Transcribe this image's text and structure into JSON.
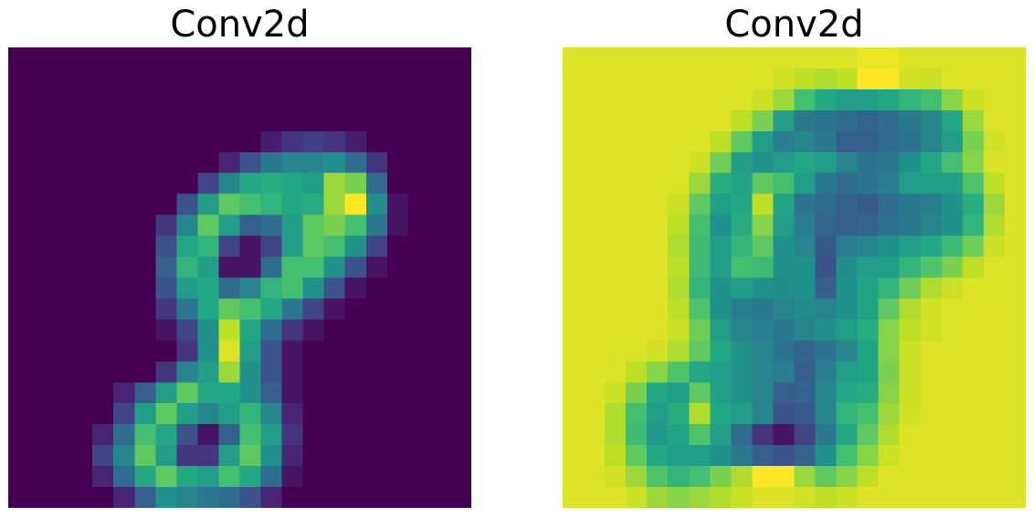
{
  "chart_data": [
    {
      "type": "heatmap",
      "title": "Conv2d",
      "colormap": "viridis",
      "axes_visible": false,
      "grid": false,
      "rows": 22,
      "cols": 22,
      "values": [
        [
          0,
          0,
          0,
          0,
          0,
          0,
          0,
          0,
          0,
          0,
          0,
          0,
          0,
          0,
          0,
          0,
          0,
          0,
          0,
          0,
          0,
          0
        ],
        [
          0,
          0,
          0,
          0,
          0,
          0,
          0,
          0,
          0,
          0,
          0,
          0,
          0,
          0,
          0,
          0,
          0,
          0,
          0,
          0,
          0,
          0
        ],
        [
          0,
          0,
          0,
          0,
          0,
          0,
          0,
          0,
          0,
          0,
          0,
          0,
          0,
          0,
          0,
          0,
          0,
          0,
          0,
          0,
          0,
          0
        ],
        [
          0,
          0,
          0,
          0,
          0,
          0,
          0,
          0,
          0,
          0,
          0,
          0,
          0,
          0,
          0,
          0,
          0,
          0,
          0,
          0,
          0,
          0
        ],
        [
          0,
          0,
          0,
          0,
          0,
          0,
          0,
          0,
          0,
          0,
          0,
          0,
          0.08,
          0.15,
          0.18,
          0.15,
          0.08,
          0,
          0,
          0,
          0,
          0
        ],
        [
          0,
          0,
          0,
          0,
          0,
          0,
          0,
          0,
          0,
          0,
          0.1,
          0.25,
          0.4,
          0.45,
          0.45,
          0.5,
          0.35,
          0.15,
          0,
          0,
          0,
          0
        ],
        [
          0,
          0,
          0,
          0,
          0,
          0,
          0,
          0,
          0,
          0.2,
          0.45,
          0.6,
          0.62,
          0.6,
          0.55,
          0.85,
          0.8,
          0.35,
          0,
          0,
          0,
          0
        ],
        [
          0,
          0,
          0,
          0,
          0,
          0,
          0,
          0,
          0.25,
          0.55,
          0.75,
          0.7,
          0.65,
          0.6,
          0.62,
          0.85,
          1.0,
          0.5,
          0.05,
          0,
          0,
          0
        ],
        [
          0,
          0,
          0,
          0,
          0,
          0,
          0,
          0.15,
          0.45,
          0.75,
          0.55,
          0.3,
          0.35,
          0.55,
          0.75,
          0.8,
          0.7,
          0.4,
          0.05,
          0,
          0,
          0
        ],
        [
          0,
          0,
          0,
          0,
          0,
          0,
          0,
          0.25,
          0.6,
          0.65,
          0.2,
          0.05,
          0.2,
          0.55,
          0.75,
          0.7,
          0.5,
          0.2,
          0,
          0,
          0,
          0
        ],
        [
          0,
          0,
          0,
          0,
          0,
          0,
          0,
          0.3,
          0.65,
          0.55,
          0.05,
          0.05,
          0.35,
          0.7,
          0.7,
          0.5,
          0.25,
          0.05,
          0,
          0,
          0,
          0
        ],
        [
          0,
          0,
          0,
          0,
          0,
          0,
          0,
          0.25,
          0.55,
          0.6,
          0.35,
          0.45,
          0.65,
          0.7,
          0.5,
          0.25,
          0.05,
          0,
          0,
          0,
          0,
          0
        ],
        [
          0,
          0,
          0,
          0,
          0,
          0,
          0,
          0.15,
          0.4,
          0.6,
          0.75,
          0.7,
          0.6,
          0.4,
          0.2,
          0.05,
          0,
          0,
          0,
          0,
          0,
          0
        ],
        [
          0,
          0,
          0,
          0,
          0,
          0,
          0,
          0.05,
          0.2,
          0.5,
          0.9,
          0.6,
          0.35,
          0.15,
          0.05,
          0,
          0,
          0,
          0,
          0,
          0,
          0
        ],
        [
          0,
          0,
          0,
          0,
          0,
          0,
          0,
          0,
          0.15,
          0.5,
          0.95,
          0.55,
          0.25,
          0.05,
          0,
          0,
          0,
          0,
          0,
          0,
          0,
          0
        ],
        [
          0,
          0,
          0,
          0,
          0,
          0,
          0,
          0.15,
          0.45,
          0.55,
          0.85,
          0.5,
          0.25,
          0.05,
          0,
          0,
          0,
          0,
          0,
          0,
          0,
          0
        ],
        [
          0,
          0,
          0,
          0,
          0,
          0.1,
          0.3,
          0.55,
          0.75,
          0.6,
          0.6,
          0.5,
          0.3,
          0.05,
          0,
          0,
          0,
          0,
          0,
          0,
          0,
          0
        ],
        [
          0,
          0,
          0,
          0,
          0,
          0.2,
          0.55,
          0.75,
          0.55,
          0.45,
          0.55,
          0.65,
          0.45,
          0.1,
          0,
          0,
          0,
          0,
          0,
          0,
          0,
          0
        ],
        [
          0,
          0,
          0,
          0,
          0.1,
          0.35,
          0.7,
          0.6,
          0.25,
          0.05,
          0.3,
          0.7,
          0.55,
          0.15,
          0,
          0,
          0,
          0,
          0,
          0,
          0,
          0
        ],
        [
          0,
          0,
          0,
          0,
          0.2,
          0.45,
          0.75,
          0.55,
          0.15,
          0.15,
          0.55,
          0.75,
          0.5,
          0.1,
          0,
          0,
          0,
          0,
          0,
          0,
          0,
          0
        ],
        [
          0,
          0,
          0,
          0,
          0.1,
          0.35,
          0.6,
          0.75,
          0.6,
          0.55,
          0.7,
          0.6,
          0.35,
          0.05,
          0,
          0,
          0,
          0,
          0,
          0,
          0,
          0
        ],
        [
          0,
          0,
          0,
          0,
          0,
          0.1,
          0.3,
          0.5,
          0.45,
          0.4,
          0.35,
          0.25,
          0.1,
          0,
          0,
          0,
          0,
          0,
          0,
          0,
          0,
          0
        ]
      ]
    },
    {
      "type": "heatmap",
      "title": "Conv2d",
      "colormap": "viridis",
      "axes_visible": false,
      "grid": false,
      "rows": 22,
      "cols": 22,
      "values": [
        [
          0.95,
          0.95,
          0.95,
          0.95,
          0.95,
          0.95,
          0.95,
          0.95,
          0.95,
          0.95,
          0.95,
          0.95,
          0.95,
          0.95,
          0.97,
          0.97,
          0.95,
          0.95,
          0.95,
          0.95,
          0.95,
          0.95
        ],
        [
          0.95,
          0.95,
          0.95,
          0.95,
          0.95,
          0.95,
          0.95,
          0.95,
          0.95,
          0.95,
          0.93,
          0.9,
          0.88,
          0.9,
          1.0,
          1.0,
          0.93,
          0.92,
          0.95,
          0.95,
          0.95,
          0.95
        ],
        [
          0.95,
          0.95,
          0.95,
          0.95,
          0.95,
          0.95,
          0.95,
          0.95,
          0.95,
          0.92,
          0.85,
          0.7,
          0.6,
          0.55,
          0.55,
          0.6,
          0.65,
          0.7,
          0.82,
          0.92,
          0.95,
          0.95
        ],
        [
          0.95,
          0.95,
          0.95,
          0.95,
          0.95,
          0.95,
          0.95,
          0.95,
          0.9,
          0.8,
          0.55,
          0.4,
          0.38,
          0.35,
          0.32,
          0.35,
          0.4,
          0.45,
          0.6,
          0.85,
          0.95,
          0.95
        ],
        [
          0.95,
          0.95,
          0.95,
          0.95,
          0.95,
          0.95,
          0.95,
          0.9,
          0.75,
          0.55,
          0.42,
          0.45,
          0.4,
          0.3,
          0.3,
          0.35,
          0.38,
          0.45,
          0.55,
          0.8,
          0.93,
          0.95
        ],
        [
          0.95,
          0.95,
          0.95,
          0.95,
          0.95,
          0.95,
          0.92,
          0.78,
          0.55,
          0.5,
          0.55,
          0.6,
          0.55,
          0.45,
          0.38,
          0.4,
          0.5,
          0.6,
          0.7,
          0.82,
          0.95,
          0.95
        ],
        [
          0.95,
          0.95,
          0.95,
          0.95,
          0.95,
          0.95,
          0.85,
          0.62,
          0.58,
          0.75,
          0.7,
          0.55,
          0.4,
          0.35,
          0.38,
          0.42,
          0.55,
          0.55,
          0.55,
          0.72,
          0.9,
          0.95
        ],
        [
          0.95,
          0.95,
          0.95,
          0.95,
          0.95,
          0.92,
          0.75,
          0.55,
          0.6,
          0.9,
          0.58,
          0.38,
          0.35,
          0.3,
          0.28,
          0.35,
          0.4,
          0.42,
          0.5,
          0.62,
          0.85,
          0.95
        ],
        [
          0.95,
          0.95,
          0.95,
          0.95,
          0.95,
          0.9,
          0.7,
          0.5,
          0.62,
          0.82,
          0.55,
          0.42,
          0.32,
          0.3,
          0.32,
          0.38,
          0.4,
          0.45,
          0.5,
          0.65,
          0.88,
          0.95
        ],
        [
          0.95,
          0.95,
          0.95,
          0.95,
          0.95,
          0.88,
          0.68,
          0.55,
          0.65,
          0.75,
          0.5,
          0.45,
          0.28,
          0.42,
          0.45,
          0.5,
          0.55,
          0.6,
          0.68,
          0.78,
          0.92,
          0.95
        ],
        [
          0.95,
          0.95,
          0.95,
          0.95,
          0.95,
          0.9,
          0.68,
          0.55,
          0.7,
          0.68,
          0.5,
          0.5,
          0.25,
          0.48,
          0.55,
          0.55,
          0.65,
          0.72,
          0.8,
          0.9,
          0.95,
          0.95
        ],
        [
          0.95,
          0.95,
          0.95,
          0.95,
          0.95,
          0.88,
          0.65,
          0.5,
          0.55,
          0.5,
          0.48,
          0.5,
          0.3,
          0.5,
          0.58,
          0.65,
          0.78,
          0.88,
          0.92,
          0.95,
          0.95,
          0.95
        ],
        [
          0.95,
          0.95,
          0.95,
          0.95,
          0.95,
          0.9,
          0.72,
          0.5,
          0.42,
          0.4,
          0.45,
          0.48,
          0.45,
          0.5,
          0.58,
          0.75,
          0.88,
          0.93,
          0.95,
          0.95,
          0.95,
          0.95
        ],
        [
          0.95,
          0.95,
          0.95,
          0.95,
          0.95,
          0.92,
          0.78,
          0.55,
          0.45,
          0.42,
          0.4,
          0.45,
          0.5,
          0.55,
          0.62,
          0.82,
          0.9,
          0.93,
          0.95,
          0.95,
          0.95,
          0.95
        ],
        [
          0.95,
          0.95,
          0.95,
          0.95,
          0.93,
          0.88,
          0.75,
          0.6,
          0.5,
          0.45,
          0.38,
          0.32,
          0.38,
          0.45,
          0.58,
          0.82,
          0.92,
          0.95,
          0.95,
          0.95,
          0.95,
          0.95
        ],
        [
          0.95,
          0.95,
          0.95,
          0.9,
          0.82,
          0.72,
          0.6,
          0.55,
          0.5,
          0.45,
          0.42,
          0.3,
          0.42,
          0.55,
          0.58,
          0.8,
          0.92,
          0.95,
          0.95,
          0.95,
          0.95,
          0.95
        ],
        [
          0.95,
          0.95,
          0.92,
          0.8,
          0.6,
          0.55,
          0.75,
          0.55,
          0.5,
          0.45,
          0.3,
          0.32,
          0.45,
          0.6,
          0.62,
          0.82,
          0.92,
          0.95,
          0.95,
          0.95,
          0.95,
          0.95
        ],
        [
          0.95,
          0.95,
          0.88,
          0.7,
          0.55,
          0.62,
          0.88,
          0.6,
          0.55,
          0.45,
          0.25,
          0.28,
          0.45,
          0.65,
          0.7,
          0.85,
          0.93,
          0.95,
          0.95,
          0.95,
          0.95,
          0.95
        ],
        [
          0.95,
          0.95,
          0.88,
          0.68,
          0.52,
          0.58,
          0.72,
          0.55,
          0.35,
          0.15,
          0.05,
          0.2,
          0.4,
          0.6,
          0.75,
          0.88,
          0.95,
          0.95,
          0.95,
          0.95,
          0.95,
          0.95
        ],
        [
          0.95,
          0.95,
          0.9,
          0.75,
          0.6,
          0.55,
          0.55,
          0.5,
          0.4,
          0.3,
          0.25,
          0.32,
          0.5,
          0.7,
          0.82,
          0.92,
          0.95,
          0.95,
          0.95,
          0.95,
          0.95,
          0.95
        ],
        [
          0.95,
          0.95,
          0.93,
          0.85,
          0.72,
          0.65,
          0.7,
          0.8,
          0.88,
          1.0,
          1.0,
          0.85,
          0.75,
          0.82,
          0.9,
          0.95,
          0.95,
          0.95,
          0.95,
          0.95,
          0.95,
          0.95
        ],
        [
          0.95,
          0.95,
          0.95,
          0.92,
          0.85,
          0.82,
          0.85,
          0.88,
          0.92,
          0.95,
          0.95,
          0.93,
          0.9,
          0.92,
          0.95,
          0.95,
          0.95,
          0.95,
          0.95,
          0.95,
          0.95,
          0.95
        ]
      ]
    }
  ]
}
